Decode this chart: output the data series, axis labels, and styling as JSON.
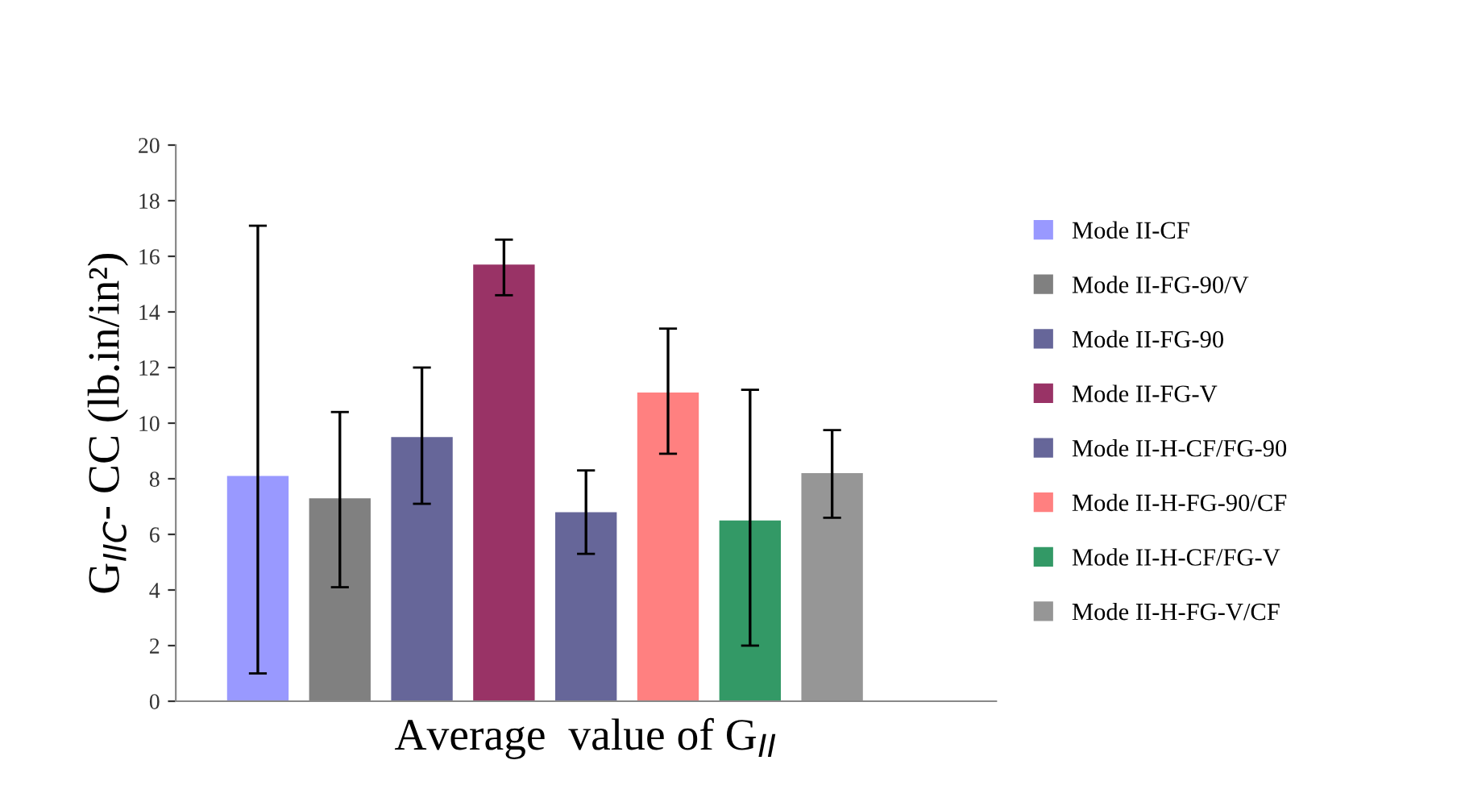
{
  "chart_data": {
    "type": "bar",
    "categories": [
      null
    ],
    "xlabel": "Average  value of G$_{II}$",
    "ylabel": "G$_{IIC}$- CC (lb.in/in²)",
    "ylim": [
      0,
      20
    ],
    "yticks": [
      0,
      2,
      4,
      6,
      8,
      10,
      12,
      14,
      16,
      18,
      20
    ],
    "grid": false,
    "legend": "right",
    "series": [
      {
        "name": "Mode II-CF",
        "color": "#9999ff",
        "values": [
          8.1
        ],
        "errors": [
          [
            1.0,
            17.1
          ]
        ]
      },
      {
        "name": "Mode II-FG-90/V",
        "color": "#808080",
        "values": [
          7.3
        ],
        "errors": [
          [
            4.1,
            10.4
          ]
        ]
      },
      {
        "name": "Mode II-FG-90",
        "color": "#666699",
        "values": [
          9.5
        ],
        "errors": [
          [
            7.1,
            12.0
          ]
        ]
      },
      {
        "name": "Mode II-FG-V",
        "color": "#993366",
        "values": [
          15.7
        ],
        "errors": [
          [
            14.6,
            16.6
          ]
        ]
      },
      {
        "name": "Mode II-H-CF/FG-90",
        "color": "#666699",
        "values": [
          6.8
        ],
        "errors": [
          [
            5.3,
            8.3
          ]
        ]
      },
      {
        "name": "Mode II-H-FG-90/CF",
        "color": "#ff8080",
        "values": [
          11.1
        ],
        "errors": [
          [
            8.9,
            13.4
          ]
        ]
      },
      {
        "name": "Mode II-H-CF/FG-V",
        "color": "#339966",
        "values": [
          6.5
        ],
        "errors": [
          [
            2.0,
            11.2
          ]
        ]
      },
      {
        "name": "Mode II-H-FG-V/CF",
        "color": "#969696",
        "values": [
          8.2
        ],
        "errors": [
          [
            6.6,
            9.75
          ]
        ]
      }
    ]
  }
}
